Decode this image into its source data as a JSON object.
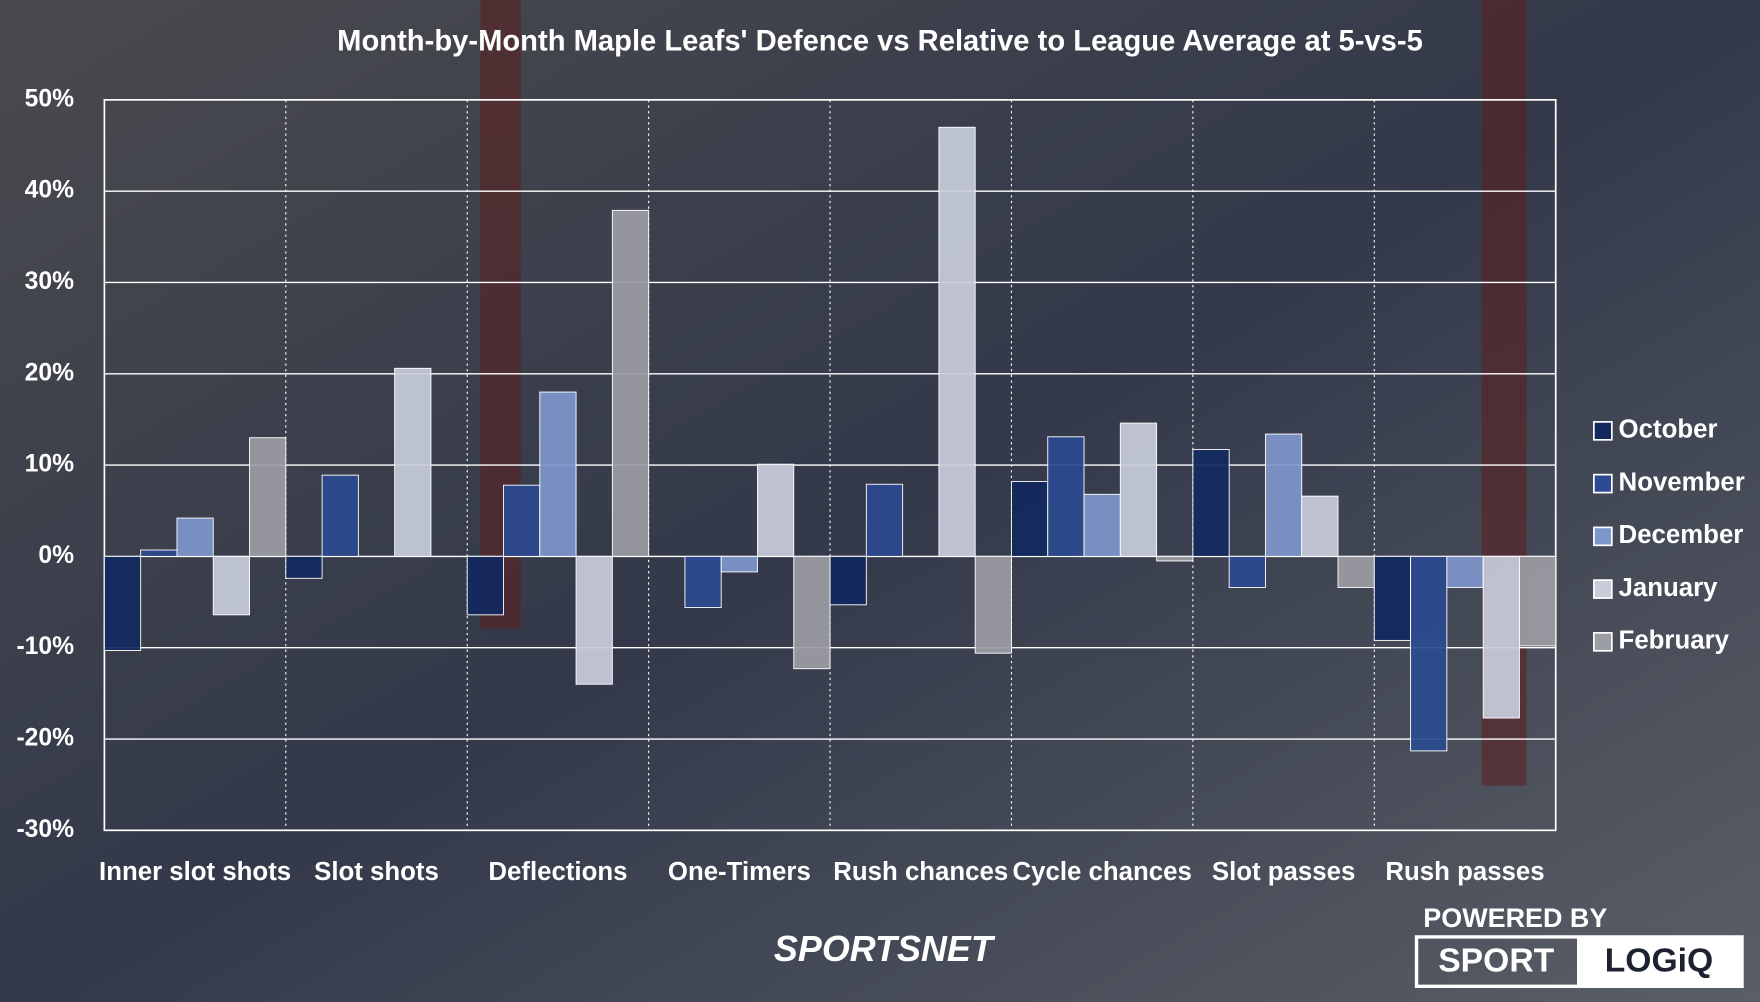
{
  "chart_data": {
    "type": "bar",
    "title": "Month-by-Month  Maple Leafs' Defence vs Relative to League Average at 5-vs-5",
    "categories": [
      "Inner slot shots",
      "Slot shots",
      "Deflections",
      "One-Timers",
      "Rush chances",
      "Cycle chances",
      "Slot passes",
      "Rush passes"
    ],
    "series": [
      {
        "name": "October",
        "color": "#12285e",
        "values": [
          -10.3,
          -2.4,
          -6.4,
          0,
          -5.3,
          8.2,
          11.7,
          -9.2
        ]
      },
      {
        "name": "November",
        "color": "#2b4a8f",
        "values": [
          0.7,
          8.9,
          7.8,
          -5.6,
          7.9,
          13.1,
          -3.4,
          -21.3
        ]
      },
      {
        "name": "December",
        "color": "#7f96cc",
        "values": [
          4.2,
          0,
          18.0,
          -1.7,
          0,
          6.8,
          13.4,
          -3.4
        ]
      },
      {
        "name": "January",
        "color": "#c9cddb",
        "values": [
          -6.4,
          20.6,
          -14.0,
          10.1,
          47.0,
          14.6,
          6.6,
          -17.7
        ]
      },
      {
        "name": "February",
        "color": "#9c9ca4",
        "values": [
          13.0,
          0,
          37.9,
          -12.3,
          -10.6,
          -0.5,
          -3.4,
          -9.8
        ]
      }
    ],
    "ylim": [
      -30,
      50
    ],
    "yticks": [
      {
        "value": -30,
        "label": "-30%"
      },
      {
        "value": -20,
        "label": "-20%"
      },
      {
        "value": -10,
        "label": "-10%"
      },
      {
        "value": 0,
        "label": "0%"
      },
      {
        "value": 10,
        "label": "10%"
      },
      {
        "value": 20,
        "label": "20%"
      },
      {
        "value": 30,
        "label": "30%"
      },
      {
        "value": 40,
        "label": "40%"
      },
      {
        "value": 50,
        "label": "50%"
      }
    ],
    "grid": true,
    "legend": "right"
  },
  "branding": {
    "broadcaster": "SPORTSNET",
    "powered_by": "POWERED BY",
    "sport": "SPORT",
    "logiq": "LOGiQ"
  }
}
